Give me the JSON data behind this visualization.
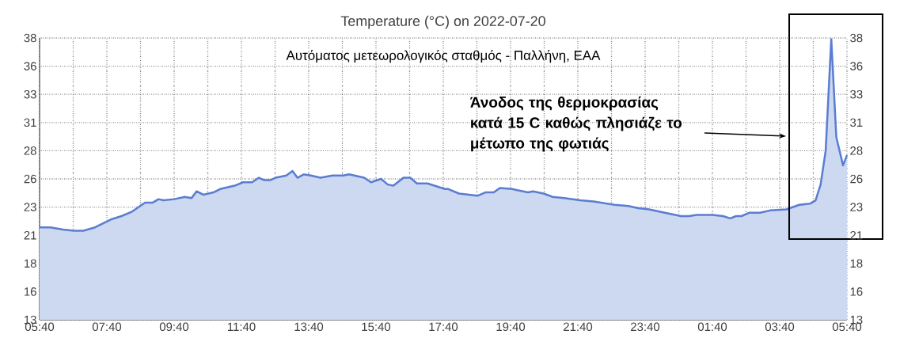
{
  "chart_data": {
    "type": "area",
    "title": "Temperature (°C) on 2022-07-20",
    "subtitle": "Αυτόματος μετεωρολογικός σταθμός - Παλλήνη, ΕΑΑ",
    "annotations": [
      "Άνοδος της θερμοκρασίας κατά 15 C καθώς πλησιάζε το μέτωπο της φωτιάς"
    ],
    "x": [
      "2022-07-20T05:40",
      "2022-07-20T05:59",
      "2022-07-20T06:22",
      "2022-07-20T06:41",
      "2022-07-20T06:58",
      "2022-07-20T07:19",
      "2022-07-20T07:47",
      "2022-07-20T08:06",
      "2022-07-20T08:25",
      "2022-07-20T08:48",
      "2022-07-20T09:02",
      "2022-07-20T09:12",
      "2022-07-20T09:21",
      "2022-07-20T09:40",
      "2022-07-20T09:59",
      "2022-07-20T10:11",
      "2022-07-20T10:20",
      "2022-07-20T10:32",
      "2022-07-20T10:50",
      "2022-07-20T11:02",
      "2022-07-20T11:28",
      "2022-07-20T11:43",
      "2022-07-20T11:59",
      "2022-07-20T12:11",
      "2022-07-20T12:20",
      "2022-07-20T12:32",
      "2022-07-20T12:41",
      "2022-07-20T13:00",
      "2022-07-20T13:11",
      "2022-07-20T13:20",
      "2022-07-20T13:31",
      "2022-07-20T13:44",
      "2022-07-20T14:01",
      "2022-07-20T14:22",
      "2022-07-20T14:41",
      "2022-07-20T14:52",
      "2022-07-20T15:19",
      "2022-07-20T15:31",
      "2022-07-20T15:49",
      "2022-07-20T16:01",
      "2022-07-20T16:11",
      "2022-07-20T16:29",
      "2022-07-20T16:41",
      "2022-07-20T16:53",
      "2022-07-20T17:12",
      "2022-07-20T17:43",
      "2022-07-20T17:49",
      "2022-07-20T18:08",
      "2022-07-20T18:41",
      "2022-07-20T18:55",
      "2022-07-20T19:10",
      "2022-07-20T19:21",
      "2022-07-20T19:43",
      "2022-07-20T19:52",
      "2022-07-20T20:11",
      "2022-07-20T20:20",
      "2022-07-20T20:39",
      "2022-07-20T20:55",
      "2022-07-20T21:16",
      "2022-07-20T21:44",
      "2022-07-20T22:08",
      "2022-07-20T22:46",
      "2022-07-20T23:10",
      "2022-07-20T23:28",
      "2022-07-20T23:47",
      "2022-07-21T00:15",
      "2022-07-21T00:44",
      "2022-07-21T00:58",
      "2022-07-21T01:12",
      "2022-07-21T01:40",
      "2022-07-21T01:59",
      "2022-07-21T02:12",
      "2022-07-21T02:22",
      "2022-07-21T02:32",
      "2022-07-21T02:46",
      "2022-07-21T03:05",
      "2022-07-21T03:23",
      "2022-07-21T03:52",
      "2022-07-21T04:15",
      "2022-07-21T04:34",
      "2022-07-21T04:44",
      "2022-07-21T04:53",
      "2022-07-21T05:02",
      "2022-07-21T05:12",
      "2022-07-21T05:21",
      "2022-07-21T05:33",
      "2022-07-21T05:40"
    ],
    "series": [
      {
        "color": "#5a7dd1",
        "values": [
          21.2,
          21.2,
          21.0,
          20.9,
          20.9,
          21.2,
          21.9,
          22.2,
          22.6,
          23.4,
          23.4,
          23.7,
          23.6,
          23.7,
          23.9,
          23.8,
          24.4,
          24.1,
          24.3,
          24.6,
          24.9,
          25.2,
          25.2,
          25.6,
          25.4,
          25.4,
          25.6,
          25.8,
          26.2,
          25.6,
          25.9,
          25.8,
          25.6,
          25.8,
          25.8,
          25.9,
          25.6,
          25.2,
          25.5,
          25.0,
          24.9,
          25.6,
          25.6,
          25.1,
          25.1,
          24.6,
          24.6,
          24.2,
          24.0,
          24.3,
          24.3,
          24.7,
          24.6,
          24.5,
          24.3,
          24.4,
          24.2,
          23.9,
          23.8,
          23.6,
          23.5,
          23.2,
          23.1,
          22.9,
          22.8,
          22.5,
          22.2,
          22.2,
          22.3,
          22.3,
          22.2,
          22.0,
          22.2,
          22.2,
          22.5,
          22.5,
          22.7,
          22.8,
          23.2,
          23.3,
          23.6,
          25.0,
          28.0,
          37.9,
          29.2,
          26.7,
          27.6
        ]
      }
    ],
    "xlim": [
      "2022-07-20T05:40",
      "2022-07-21T05:40"
    ],
    "xticks": [
      {
        "value": "2022-07-20T05:40",
        "label": "05:40"
      },
      {
        "value": "2022-07-20T06:40",
        "label": null
      },
      {
        "value": "2022-07-20T07:40",
        "label": "07:40"
      },
      {
        "value": "2022-07-20T08:40",
        "label": null
      },
      {
        "value": "2022-07-20T09:40",
        "label": "09:40"
      },
      {
        "value": "2022-07-20T10:40",
        "label": null
      },
      {
        "value": "2022-07-20T11:40",
        "label": "11:40"
      },
      {
        "value": "2022-07-20T12:40",
        "label": null
      },
      {
        "value": "2022-07-20T13:40",
        "label": "13:40"
      },
      {
        "value": "2022-07-20T14:40",
        "label": null
      },
      {
        "value": "2022-07-20T15:40",
        "label": "15:40"
      },
      {
        "value": "2022-07-20T16:40",
        "label": null
      },
      {
        "value": "2022-07-20T17:40",
        "label": "17:40"
      },
      {
        "value": "2022-07-20T18:40",
        "label": null
      },
      {
        "value": "2022-07-20T19:40",
        "label": "19:40"
      },
      {
        "value": "2022-07-20T20:40",
        "label": null
      },
      {
        "value": "2022-07-20T21:40",
        "label": "21:40"
      },
      {
        "value": "2022-07-20T22:40",
        "label": null
      },
      {
        "value": "2022-07-20T23:40",
        "label": "23:40"
      },
      {
        "value": "2022-07-21T00:40",
        "label": null
      },
      {
        "value": "2022-07-21T01:40",
        "label": "01:40"
      },
      {
        "value": "2022-07-21T02:40",
        "label": null
      },
      {
        "value": "2022-07-21T03:40",
        "label": "03:40"
      },
      {
        "value": "2022-07-21T04:40",
        "label": null
      },
      {
        "value": "2022-07-21T05:40",
        "label": "05:40"
      }
    ],
    "ylim": [
      13,
      38
    ],
    "yticks": [
      13,
      {
        "value": 15.5,
        "label": "16"
      },
      18,
      {
        "value": 20.5,
        "label": "21"
      },
      23,
      {
        "value": 25.5,
        "label": "26"
      },
      28,
      {
        "value": 30.5,
        "label": "31"
      },
      33,
      {
        "value": 35.5,
        "label": "36"
      },
      38
    ],
    "y2lim": [
      13,
      38
    ],
    "y2ticks": [
      13,
      {
        "value": 15.5,
        "label": "16"
      },
      18,
      {
        "value": 20.5,
        "label": "21"
      },
      23,
      {
        "value": 25.5,
        "label": "26"
      },
      28,
      {
        "value": 30.5,
        "label": "31"
      },
      33,
      {
        "value": 35.5,
        "label": "36"
      },
      38
    ],
    "grid": true
  }
}
